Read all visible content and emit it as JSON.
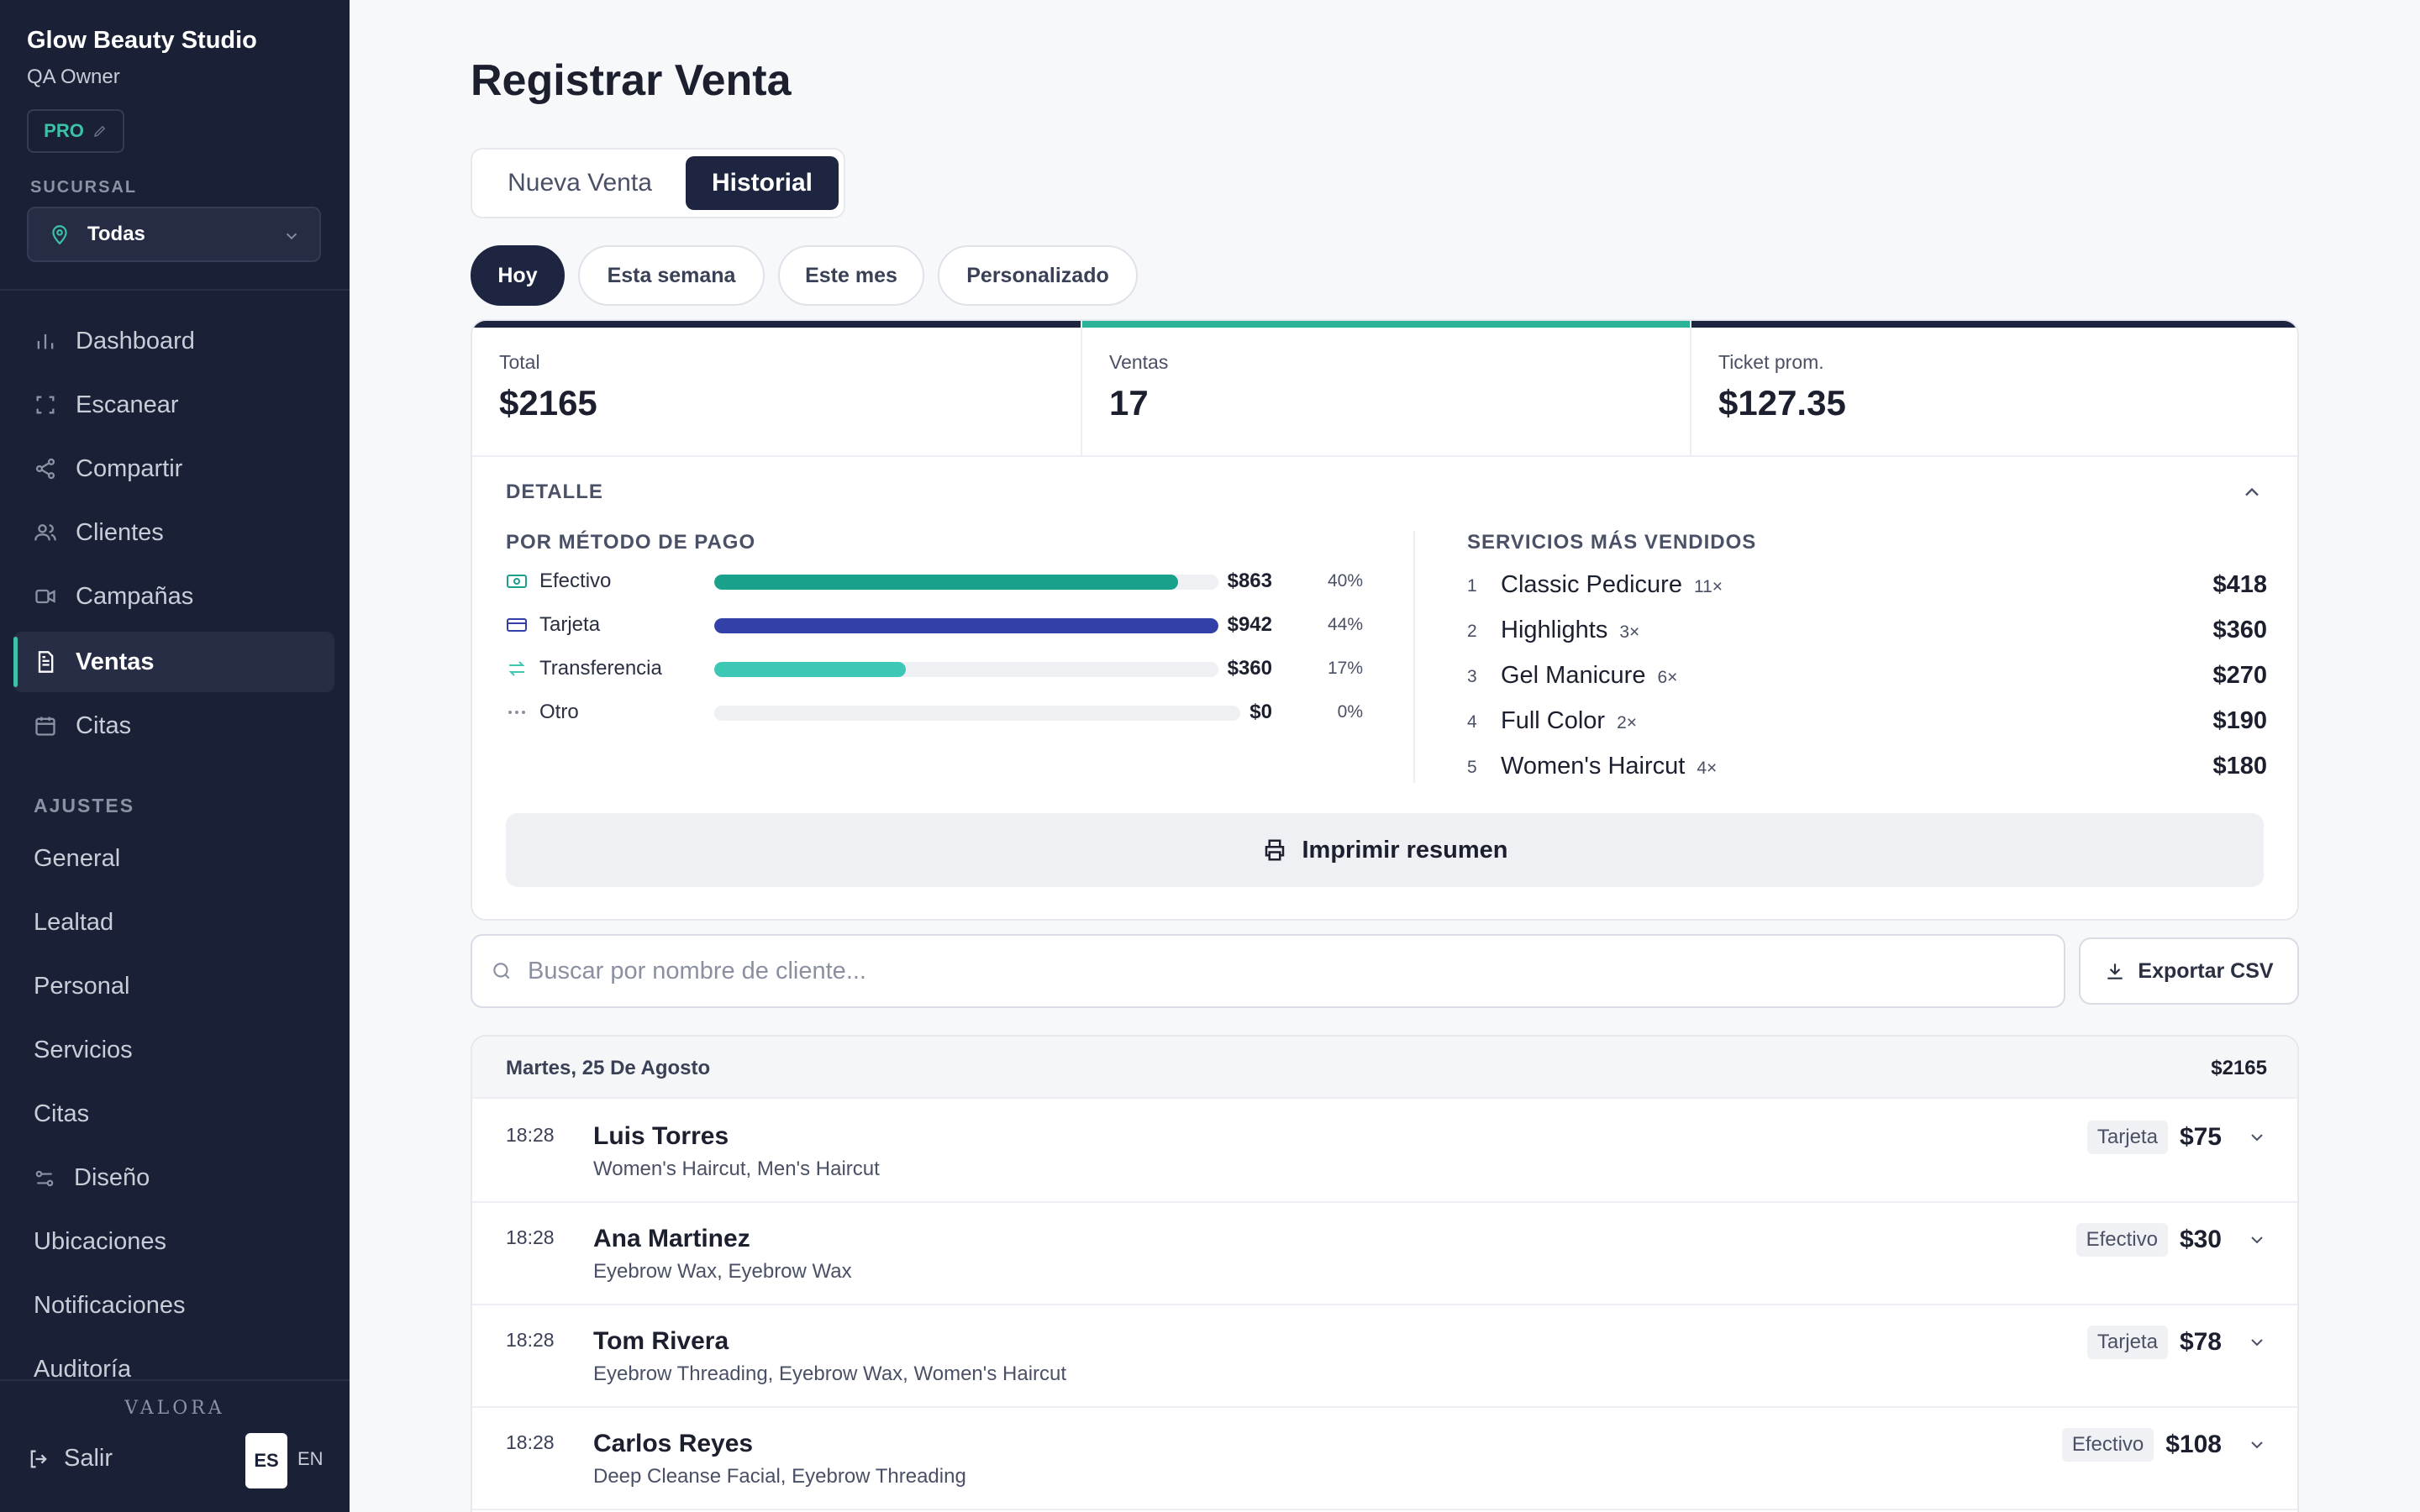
{
  "sidebar": {
    "brand": "Glow Beauty Studio",
    "owner": "QA Owner",
    "badge": "PRO",
    "branch_label": "SUCURSAL",
    "branch_value": "Todas",
    "nav": [
      {
        "label": "Dashboard",
        "icon": "bar-chart-icon"
      },
      {
        "label": "Escanear",
        "icon": "scan-icon"
      },
      {
        "label": "Compartir",
        "icon": "share-icon"
      },
      {
        "label": "Clientes",
        "icon": "users-icon"
      },
      {
        "label": "Campañas",
        "icon": "video-icon"
      },
      {
        "label": "Ventas",
        "icon": "receipt-icon",
        "active": true
      },
      {
        "label": "Citas",
        "icon": "calendar-icon"
      }
    ],
    "settings_label": "AJUSTES",
    "settings": [
      "General",
      "Lealtad",
      "Personal",
      "Servicios",
      "Citas",
      "Diseño",
      "Ubicaciones",
      "Notificaciones",
      "Auditoría"
    ],
    "footer_brand": "VALORA",
    "logout": "Salir",
    "lang_active": "ES",
    "lang_other": "EN"
  },
  "main": {
    "title": "Registrar Venta",
    "tabs": [
      "Nueva Venta",
      "Historial"
    ],
    "active_tab": "Historial",
    "periods": [
      "Hoy",
      "Esta semana",
      "Este mes",
      "Personalizado"
    ],
    "active_period": "Hoy",
    "stats": [
      {
        "label": "Total",
        "value": "$2165",
        "accent": "#1e2540"
      },
      {
        "label": "Ventas",
        "value": "17",
        "accent": "#2bb39a"
      },
      {
        "label": "Ticket prom.",
        "value": "$127.35",
        "accent": "#1e2540"
      }
    ],
    "detail_label": "DETALLE",
    "payment_label": "POR MÉTODO DE PAGO",
    "payments": [
      {
        "name": "Efectivo",
        "amount": "$863",
        "pct": "40%",
        "fraction": 0.92,
        "color": "#1aa18c",
        "icon": "cash-icon"
      },
      {
        "name": "Tarjeta",
        "amount": "$942",
        "pct": "44%",
        "fraction": 1.0,
        "color": "#3340a8",
        "icon": "card-icon"
      },
      {
        "name": "Transferencia",
        "amount": "$360",
        "pct": "17%",
        "fraction": 0.38,
        "color": "#3cc8b4",
        "icon": "transfer-icon"
      },
      {
        "name": "Otro",
        "amount": "$0",
        "pct": "0%",
        "fraction": 0,
        "color": "#c9ccd6",
        "icon": "dots-icon"
      }
    ],
    "services_label": "SERVICIOS MÁS VENDIDOS",
    "top_services": [
      {
        "rank": "1",
        "name": "Classic Pedicure",
        "count": "11×",
        "amount": "$418"
      },
      {
        "rank": "2",
        "name": "Highlights",
        "count": "3×",
        "amount": "$360"
      },
      {
        "rank": "3",
        "name": "Gel Manicure",
        "count": "6×",
        "amount": "$270"
      },
      {
        "rank": "4",
        "name": "Full Color",
        "count": "2×",
        "amount": "$190"
      },
      {
        "rank": "5",
        "name": "Women's Haircut",
        "count": "4×",
        "amount": "$180"
      }
    ],
    "print_label": "Imprimir resumen",
    "search_placeholder": "Buscar por nombre de cliente...",
    "export_label": "Exportar CSV",
    "day": {
      "label": "Martes, 25 De Agosto",
      "total": "$2165"
    },
    "sales": [
      {
        "time": "18:28",
        "customer": "Luis Torres",
        "services": "Women's Haircut, Men's Haircut",
        "method": "Tarjeta",
        "amount": "$75"
      },
      {
        "time": "18:28",
        "customer": "Ana Martinez",
        "services": "Eyebrow Wax, Eyebrow Wax",
        "method": "Efectivo",
        "amount": "$30"
      },
      {
        "time": "18:28",
        "customer": "Tom Rivera",
        "services": "Eyebrow Threading, Eyebrow Wax, Women's Haircut",
        "method": "Tarjeta",
        "amount": "$78"
      },
      {
        "time": "18:28",
        "customer": "Carlos Reyes",
        "services": "Deep Cleanse Facial, Eyebrow Threading",
        "method": "Efectivo",
        "amount": "$108"
      }
    ]
  }
}
